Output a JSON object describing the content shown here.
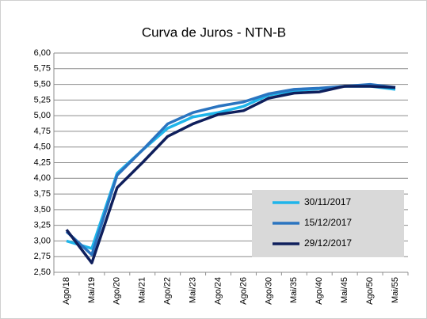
{
  "chart_data": {
    "type": "line",
    "title": "Curva de Juros - NTN-B",
    "categories": [
      "Ago/18",
      "Mai/19",
      "Ago/20",
      "Mai/21",
      "Ago/22",
      "Mai/23",
      "Ago/24",
      "Ago/26",
      "Ago/30",
      "Mai/35",
      "Ago/40",
      "Mai/45",
      "Ago/50",
      "Mai/55"
    ],
    "series": [
      {
        "name": "30/11/2017",
        "color": "#1fb5ea",
        "values": [
          3.0,
          2.88,
          4.08,
          4.45,
          4.8,
          4.98,
          5.05,
          5.15,
          5.33,
          5.4,
          5.43,
          5.47,
          5.47,
          5.42
        ]
      },
      {
        "name": "15/12/2017",
        "color": "#2a74c0",
        "values": [
          3.15,
          2.78,
          4.05,
          4.45,
          4.87,
          5.05,
          5.15,
          5.22,
          5.35,
          5.42,
          5.44,
          5.47,
          5.5,
          5.45
        ]
      },
      {
        "name": "29/12/2017",
        "color": "#0f1f5c",
        "values": [
          3.18,
          2.65,
          3.85,
          4.25,
          4.67,
          4.87,
          5.02,
          5.08,
          5.28,
          5.36,
          5.38,
          5.47,
          5.47,
          5.45
        ]
      }
    ],
    "ylim": [
      2.5,
      6.0
    ],
    "yticks": [
      {
        "value": 2.5,
        "label": "2,50"
      },
      {
        "value": 2.75,
        "label": "2,75"
      },
      {
        "value": 3.0,
        "label": "3,00"
      },
      {
        "value": 3.25,
        "label": "3,25"
      },
      {
        "value": 3.5,
        "label": "3,50"
      },
      {
        "value": 3.75,
        "label": "3,75"
      },
      {
        "value": 4.0,
        "label": "4,00"
      },
      {
        "value": 4.25,
        "label": "4,25"
      },
      {
        "value": 4.5,
        "label": "4,50"
      },
      {
        "value": 4.75,
        "label": "4,75"
      },
      {
        "value": 5.0,
        "label": "5,00"
      },
      {
        "value": 5.25,
        "label": "5,25"
      },
      {
        "value": 5.5,
        "label": "5,50"
      },
      {
        "value": 5.75,
        "label": "5,75"
      },
      {
        "value": 6.0,
        "label": "6,00"
      }
    ],
    "grid": true,
    "legend": "lower right"
  }
}
